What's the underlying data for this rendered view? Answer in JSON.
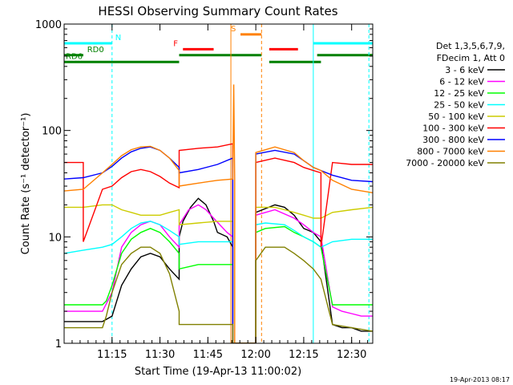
{
  "chart_data": {
    "type": "line",
    "title": "HESSI Observing Summary Count Rates",
    "xlabel": "Start Time (19-Apr-13 11:00:02)",
    "ylabel": "Count Rate (s⁻¹ detector⁻¹)",
    "y_scale": "log",
    "ylim": [
      1,
      1000
    ],
    "xlim": [
      11.0,
      12.61
    ],
    "x_unit": "hours (UT)",
    "x_ticks": [
      {
        "value": 11.25,
        "label": "11:15"
      },
      {
        "value": 11.5,
        "label": "11:30"
      },
      {
        "value": 11.75,
        "label": "11:45"
      },
      {
        "value": 12.0,
        "label": "12:00"
      },
      {
        "value": 12.25,
        "label": "12:15"
      },
      {
        "value": 12.5,
        "label": "12:30"
      }
    ],
    "y_ticks": [
      {
        "value": 1,
        "label": "1"
      },
      {
        "value": 10,
        "label": "10"
      },
      {
        "value": 100,
        "label": "100"
      },
      {
        "value": 1000,
        "label": "1000"
      }
    ],
    "legend_header": [
      "Det 1,3,5,6,7,9,",
      "FDecim 1, Att 0"
    ],
    "legend_position": "right",
    "timestamp": "19-Apr-2013 08:17",
    "series": [
      {
        "name": "3 - 6 keV",
        "color": "#000000",
        "x": [
          11.0,
          11.2,
          11.25,
          11.3,
          11.35,
          11.4,
          11.45,
          11.5,
          11.55,
          11.6,
          11.6,
          11.62,
          11.66,
          11.7,
          11.74,
          11.78,
          11.8,
          11.85,
          11.88,
          11.88,
          12.0,
          12.0,
          12.1,
          12.15,
          12.2,
          12.25,
          12.3,
          12.34,
          12.4,
          12.45,
          12.5,
          12.55,
          12.61
        ],
        "y": [
          1.6,
          1.6,
          1.8,
          3.5,
          5,
          6.5,
          7,
          6.5,
          5,
          4,
          10,
          14,
          19,
          23,
          20,
          14,
          11,
          10,
          8,
          1,
          1,
          17,
          20,
          19,
          16,
          12,
          11,
          9,
          1.5,
          1.4,
          1.4,
          1.3,
          1.3
        ]
      },
      {
        "name": "6 - 12 keV",
        "color": "#ff00ff",
        "x": [
          11.0,
          11.2,
          11.25,
          11.3,
          11.35,
          11.4,
          11.45,
          11.5,
          11.55,
          11.6,
          11.6,
          11.65,
          11.7,
          11.74,
          11.78,
          11.85,
          11.88,
          11.88,
          12.0,
          12.0,
          12.1,
          12.2,
          12.25,
          12.3,
          12.34,
          12.4,
          12.45,
          12.5,
          12.55,
          12.61
        ],
        "y": [
          2.0,
          2.0,
          3,
          8,
          11,
          13,
          14,
          13,
          10,
          8,
          13,
          18,
          20,
          18,
          15,
          11,
          10,
          1,
          1,
          16,
          18,
          15,
          13,
          11,
          10,
          2.2,
          2.0,
          1.9,
          1.8,
          1.8
        ]
      },
      {
        "name": "12 - 25 keV",
        "color": "#00ff00",
        "x": [
          11.0,
          11.2,
          11.22,
          11.25,
          11.3,
          11.35,
          11.4,
          11.45,
          11.5,
          11.55,
          11.6,
          11.6,
          11.7,
          11.8,
          11.88,
          11.88,
          12.0,
          12.0,
          12.05,
          12.15,
          12.2,
          12.25,
          12.3,
          12.34,
          12.4,
          12.5,
          12.61
        ],
        "y": [
          2.3,
          2.3,
          2.5,
          3.5,
          7,
          9.5,
          11,
          12,
          11,
          9,
          7,
          5,
          5.5,
          5.5,
          5.5,
          1,
          1,
          11,
          12,
          12.5,
          11,
          10,
          9,
          8,
          2.3,
          2.3,
          2.3
        ]
      },
      {
        "name": "25 - 50 keV",
        "color": "#00ffff",
        "x": [
          11.0,
          11.1,
          11.2,
          11.25,
          11.3,
          11.35,
          11.4,
          11.45,
          11.5,
          11.55,
          11.6,
          11.6,
          11.7,
          11.8,
          11.88,
          11.88,
          12.0,
          12.0,
          12.05,
          12.15,
          12.2,
          12.25,
          12.3,
          12.34,
          12.4,
          12.5,
          12.61
        ],
        "y": [
          7,
          7.5,
          8,
          8.5,
          10,
          12,
          13.5,
          14,
          13,
          11.5,
          10,
          8.5,
          9,
          9,
          9,
          1,
          1,
          13,
          13.5,
          13,
          11.5,
          10,
          9,
          8,
          9,
          9.5,
          9.5
        ]
      },
      {
        "name": "50 - 100 keV",
        "color": "#cccc00",
        "x": [
          11.0,
          11.1,
          11.2,
          11.25,
          11.3,
          11.35,
          11.4,
          11.45,
          11.5,
          11.55,
          11.6,
          11.6,
          11.7,
          11.8,
          11.88,
          11.88,
          12.0,
          12.0,
          12.1,
          12.15,
          12.2,
          12.25,
          12.3,
          12.34,
          12.4,
          12.5,
          12.61
        ],
        "y": [
          19,
          19,
          20,
          20,
          18,
          17,
          16,
          16,
          16,
          17,
          18,
          13,
          13.5,
          14,
          14,
          1,
          1,
          19,
          19,
          18,
          17,
          16,
          15,
          15,
          17,
          18,
          19
        ]
      },
      {
        "name": "100 - 300 keV",
        "color": "#ff0000",
        "x": [
          11.0,
          11.1,
          11.1,
          11.2,
          11.25,
          11.3,
          11.35,
          11.4,
          11.45,
          11.5,
          11.55,
          11.6,
          11.6,
          11.7,
          11.8,
          11.88,
          11.88,
          12.0,
          12.0,
          12.1,
          12.2,
          12.25,
          12.3,
          12.34,
          12.34,
          12.4,
          12.5,
          12.61
        ],
        "y": [
          50,
          50,
          9,
          28,
          30,
          36,
          41,
          43,
          41,
          37,
          32,
          29,
          65,
          68,
          70,
          75,
          1,
          1,
          50,
          55,
          50,
          45,
          42,
          40,
          8,
          50,
          48,
          48
        ]
      },
      {
        "name": "300 - 800 keV",
        "color": "#0000ff",
        "x": [
          11.0,
          11.1,
          11.2,
          11.25,
          11.3,
          11.35,
          11.4,
          11.45,
          11.5,
          11.55,
          11.6,
          11.6,
          11.7,
          11.8,
          11.88,
          11.88,
          12.0,
          12.0,
          12.1,
          12.2,
          12.25,
          12.3,
          12.34,
          12.4,
          12.5,
          12.61
        ],
        "y": [
          35,
          36,
          40,
          46,
          55,
          63,
          68,
          70,
          65,
          55,
          45,
          40,
          43,
          48,
          55,
          1,
          1,
          60,
          65,
          60,
          52,
          45,
          42,
          38,
          34,
          33
        ]
      },
      {
        "name": "800 - 7000 keV",
        "color": "#ff8000",
        "x": [
          11.0,
          11.1,
          11.2,
          11.25,
          11.3,
          11.35,
          11.4,
          11.45,
          11.5,
          11.55,
          11.6,
          11.6,
          11.7,
          11.8,
          11.88,
          11.885,
          11.89,
          11.89,
          12.0,
          12.0,
          12.1,
          12.2,
          12.25,
          12.3,
          12.34,
          12.4,
          12.5,
          12.61
        ],
        "y": [
          27,
          28,
          40,
          48,
          58,
          66,
          70,
          71,
          65,
          55,
          42,
          30,
          32,
          34,
          35,
          270,
          35,
          1,
          1,
          62,
          70,
          62,
          52,
          45,
          42,
          34,
          28,
          26
        ]
      },
      {
        "name": "7000 - 20000 keV",
        "color": "#808000",
        "x": [
          11.0,
          11.2,
          11.22,
          11.25,
          11.3,
          11.35,
          11.4,
          11.45,
          11.5,
          11.55,
          11.6,
          11.6,
          11.7,
          11.8,
          11.88,
          11.88,
          12.0,
          12.0,
          12.05,
          12.15,
          12.2,
          12.25,
          12.3,
          12.34,
          12.4,
          12.5,
          12.61
        ],
        "y": [
          1.4,
          1.4,
          1.8,
          3,
          5.5,
          7,
          8,
          8,
          7,
          4.5,
          2,
          1.5,
          1.5,
          1.5,
          1.5,
          1,
          1,
          6,
          8,
          8,
          7,
          6,
          5,
          4,
          1.5,
          1.4,
          1.3
        ]
      }
    ],
    "flag_bars": [
      {
        "label": "N",
        "color": "#00ffff",
        "y_level": 660,
        "segments": [
          [
            11.0,
            11.25
          ],
          [
            12.3,
            12.61
          ]
        ]
      },
      {
        "label": "F",
        "color": "#ff0000",
        "y_level": 580,
        "segments": [
          [
            11.62,
            11.78
          ],
          [
            12.07,
            12.22
          ]
        ]
      },
      {
        "label": "S",
        "color": "#ff8000",
        "y_level": 800,
        "segments": [
          [
            11.92,
            12.03
          ]
        ]
      },
      {
        "label": "RD0",
        "color": "#008000",
        "y_level": 510,
        "segments": [
          [
            11.0,
            11.1
          ],
          [
            11.6,
            12.03
          ],
          [
            12.32,
            12.61
          ]
        ]
      },
      {
        "label": "RD6",
        "color": "#008000",
        "y_level": 440,
        "segments": [
          [
            11.0,
            11.6
          ],
          [
            12.07,
            12.34
          ]
        ]
      }
    ],
    "vertical_markers": [
      {
        "x": 11.0,
        "color": "#00ffff",
        "style": "solid"
      },
      {
        "x": 11.25,
        "color": "#00ffff",
        "style": "dashed"
      },
      {
        "x": 11.87,
        "color": "#ff8000",
        "style": "solid"
      },
      {
        "x": 12.03,
        "color": "#ff8000",
        "style": "dashed"
      },
      {
        "x": 12.3,
        "color": "#00ffff",
        "style": "solid"
      },
      {
        "x": 12.59,
        "color": "#00ffff",
        "style": "dashed"
      }
    ]
  }
}
